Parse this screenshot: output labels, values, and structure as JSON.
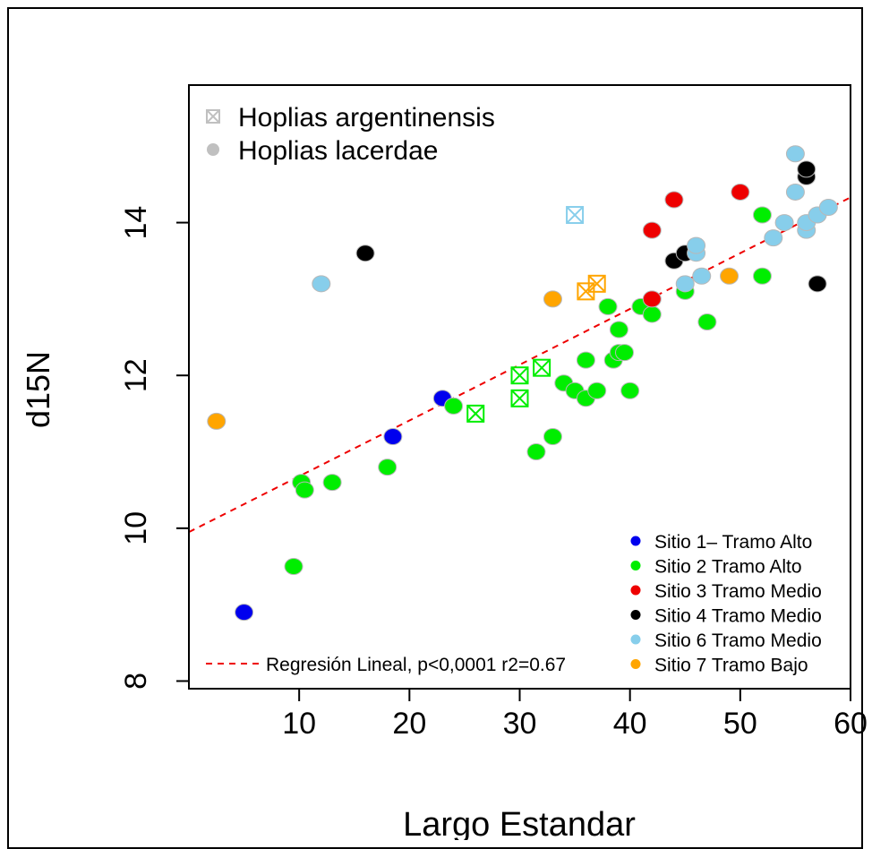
{
  "chart_data": {
    "type": "scatter",
    "title": "",
    "xlabel": "Largo Estandar",
    "ylabel": "d15N",
    "xlim": [
      0,
      60
    ],
    "ylim": [
      7.9,
      15.8
    ],
    "x_ticks": [
      10,
      20,
      30,
      40,
      50,
      60
    ],
    "y_ticks": [
      8,
      10,
      12,
      14
    ],
    "x_tick_labels": [
      "10",
      "20",
      "30",
      "40",
      "50",
      "60"
    ],
    "y_tick_labels": [
      "8",
      "10",
      "12",
      "14"
    ],
    "grid": false,
    "species_legend": {
      "placement": "top-left",
      "items": [
        {
          "label": "Hoplias argentinensis",
          "marker": "square-x",
          "color": "#c0c0c0"
        },
        {
          "label": "Hoplias lacerdae",
          "marker": "circle",
          "color": "#c0c0c0"
        }
      ]
    },
    "site_legend": {
      "placement": "bottom-right",
      "items": [
        {
          "label": "Sitio 1– Tramo Alto",
          "color": "#0000ee"
        },
        {
          "label": "Sitio 2 Tramo Alto",
          "color": "#00ee00"
        },
        {
          "label": "Sitio 3 Tramo Medio",
          "color": "#ee0000"
        },
        {
          "label": "Sitio 4 Tramo Medio",
          "color": "#000000"
        },
        {
          "label": "Sitio 6 Tramo Medio",
          "color": "#87ceeb"
        },
        {
          "label": "Sitio 7 Tramo Bajo",
          "color": "#ffa500"
        }
      ]
    },
    "regression": {
      "label": "Regresión Lineal, p<0,0001 r2=0.67",
      "color": "#ee0000",
      "intercept": 9.95,
      "slope": 0.073
    },
    "series": [
      {
        "site": 1,
        "color": "#0000ee",
        "lacerdae": [
          [
            5,
            8.9
          ],
          [
            18.5,
            11.2
          ],
          [
            23,
            11.7
          ]
        ],
        "argentinensis": []
      },
      {
        "site": 2,
        "color": "#00ee00",
        "lacerdae": [
          [
            9.5,
            9.5
          ],
          [
            10.2,
            10.6
          ],
          [
            10.5,
            10.5
          ],
          [
            13,
            10.6
          ],
          [
            18,
            10.8
          ],
          [
            24,
            11.6
          ],
          [
            31.5,
            11.0
          ],
          [
            33,
            11.2
          ],
          [
            34,
            11.9
          ],
          [
            35,
            11.8
          ],
          [
            36,
            11.7
          ],
          [
            36,
            12.2
          ],
          [
            37,
            11.8
          ],
          [
            38,
            12.9
          ],
          [
            38.5,
            12.2
          ],
          [
            39,
            12.3
          ],
          [
            39,
            12.6
          ],
          [
            39.5,
            12.3
          ],
          [
            40,
            11.8
          ],
          [
            41,
            12.9
          ],
          [
            42,
            12.8
          ],
          [
            45,
            13.1
          ],
          [
            47,
            12.7
          ],
          [
            52,
            14.1
          ],
          [
            52,
            13.3
          ]
        ],
        "argentinensis": [
          [
            26,
            11.5
          ],
          [
            30,
            11.7
          ],
          [
            30,
            12.0
          ],
          [
            32,
            12.1
          ]
        ]
      },
      {
        "site": 3,
        "color": "#ee0000",
        "lacerdae": [
          [
            42,
            13.0
          ],
          [
            42,
            13.9
          ],
          [
            44,
            14.3
          ],
          [
            50,
            14.4
          ]
        ],
        "argentinensis": []
      },
      {
        "site": 4,
        "color": "#000000",
        "lacerdae": [
          [
            16,
            13.6
          ],
          [
            44,
            13.5
          ],
          [
            45,
            13.6
          ],
          [
            56,
            14.6
          ],
          [
            56,
            14.7
          ],
          [
            57,
            13.2
          ]
        ],
        "argentinensis": []
      },
      {
        "site": 6,
        "color": "#87ceeb",
        "lacerdae": [
          [
            12,
            13.2
          ],
          [
            45,
            13.2
          ],
          [
            46,
            13.6
          ],
          [
            46,
            13.7
          ],
          [
            46.5,
            13.3
          ],
          [
            53,
            13.8
          ],
          [
            54,
            14.0
          ],
          [
            55,
            14.4
          ],
          [
            55,
            14.9
          ],
          [
            56,
            13.9
          ],
          [
            56,
            14.0
          ],
          [
            57,
            14.1
          ],
          [
            58,
            14.2
          ]
        ],
        "argentinensis": [
          [
            35,
            14.1
          ]
        ]
      },
      {
        "site": 7,
        "color": "#ffa500",
        "lacerdae": [
          [
            2.5,
            11.4
          ],
          [
            33,
            13.0
          ],
          [
            49,
            13.3
          ]
        ],
        "argentinensis": [
          [
            36,
            13.1
          ],
          [
            37,
            13.2
          ]
        ]
      }
    ]
  }
}
